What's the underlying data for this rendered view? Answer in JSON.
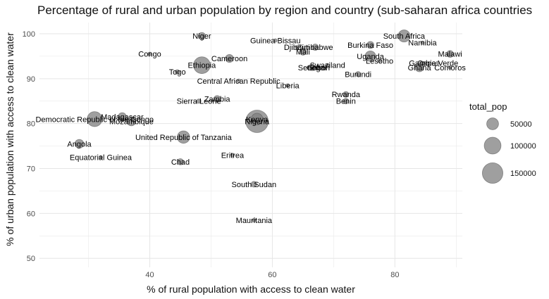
{
  "chart_data": {
    "type": "scatter",
    "title": "Percentage of rural and urban population by region and country (sub-saharan africa countries",
    "xlabel": "% of rural population with access to clean water",
    "ylabel": "% of urban population with access to clean water",
    "xlim": [
      22,
      91
    ],
    "ylim": [
      48,
      102.5
    ],
    "x_ticks": [
      40,
      60,
      80
    ],
    "y_ticks": [
      50,
      60,
      70,
      80,
      90,
      100
    ],
    "grid": true,
    "size_variable": "total_pop",
    "legend": {
      "title": "total_pop",
      "placement": "right",
      "entries": [
        {
          "label": "50000",
          "value": 50000
        },
        {
          "label": "100000",
          "value": 100000
        },
        {
          "label": "150000",
          "value": 150000
        }
      ]
    },
    "colors": {
      "point_fill": "#7f7f7f",
      "point_stroke": "#555555",
      "panel_grid": "#e6e6e6"
    },
    "points": [
      {
        "label": "Niger",
        "x": 48.5,
        "y": 99.5,
        "size": 18000
      },
      {
        "label": "South Africa",
        "x": 81.5,
        "y": 99.5,
        "size": 52000
      },
      {
        "label": "Guinea Bissau",
        "x": 60.5,
        "y": 98.5,
        "size": 1600
      },
      {
        "label": "Namibia",
        "x": 84.5,
        "y": 98,
        "size": 2300
      },
      {
        "label": "Djibouti",
        "x": 64,
        "y": 97,
        "size": 900
      },
      {
        "label": "Zimbabwe",
        "x": 67,
        "y": 97,
        "size": 15000
      },
      {
        "label": "Burkina Faso",
        "x": 76,
        "y": 97.5,
        "size": 18000
      },
      {
        "label": "Mali",
        "x": 65,
        "y": 96,
        "size": 17000
      },
      {
        "label": "Congo",
        "x": 40,
        "y": 95.5,
        "size": 5000
      },
      {
        "label": "Malawi",
        "x": 89,
        "y": 95.5,
        "size": 17000
      },
      {
        "label": "Uganda",
        "x": 76,
        "y": 95,
        "size": 40000
      },
      {
        "label": "Cameroon",
        "x": 53,
        "y": 94.5,
        "size": 23000
      },
      {
        "label": "Lesotho",
        "x": 77.5,
        "y": 94,
        "size": 2200
      },
      {
        "label": "Gambia",
        "x": 84.5,
        "y": 93.5,
        "size": 2000
      },
      {
        "label": "Cape Verde",
        "x": 87,
        "y": 93.5,
        "size": 500
      },
      {
        "label": "Ethiopia",
        "x": 48.5,
        "y": 93,
        "size": 100000
      },
      {
        "label": "Swaziland",
        "x": 69,
        "y": 93,
        "size": 1300
      },
      {
        "label": "Senegal",
        "x": 66.5,
        "y": 92.5,
        "size": 15000
      },
      {
        "label": "Ghana",
        "x": 84,
        "y": 92.5,
        "size": 27000
      },
      {
        "label": "Comoros",
        "x": 89,
        "y": 92.5,
        "size": 800
      },
      {
        "label": "Gabon",
        "x": 67.5,
        "y": 92.5,
        "size": 1900
      },
      {
        "label": "Togo",
        "x": 44.5,
        "y": 91.5,
        "size": 7500
      },
      {
        "label": "Burundi",
        "x": 74,
        "y": 91,
        "size": 10000
      },
      {
        "label": "Central African Republic",
        "x": 54.5,
        "y": 89.5,
        "size": 4700
      },
      {
        "label": "Liberia",
        "x": 62.5,
        "y": 88.5,
        "size": 4500
      },
      {
        "label": "Rwanda",
        "x": 72,
        "y": 86.5,
        "size": 12000
      },
      {
        "label": "Zambia",
        "x": 51,
        "y": 85.5,
        "size": 16000
      },
      {
        "label": "Benin",
        "x": 72,
        "y": 85,
        "size": 11000
      },
      {
        "label": "Sierra Leone",
        "x": 48,
        "y": 85,
        "size": 7000
      },
      {
        "label": "Democratic Republic of the Congo",
        "x": 31,
        "y": 81,
        "size": 80000
      },
      {
        "label": "Madagascar",
        "x": 35.5,
        "y": 81.5,
        "size": 25000
      },
      {
        "label": "Mozambique",
        "x": 37,
        "y": 80.5,
        "size": 28000
      },
      {
        "label": "Kenya",
        "x": 57.5,
        "y": 81,
        "size": 48000
      },
      {
        "label": "Nigeria",
        "x": 57.5,
        "y": 80.5,
        "size": 180000
      },
      {
        "label": "United Republic of Tanzania",
        "x": 45.5,
        "y": 77,
        "size": 55000
      },
      {
        "label": "Angola",
        "x": 28.5,
        "y": 75.5,
        "size": 28000
      },
      {
        "label": "Eritrea",
        "x": 53.5,
        "y": 73,
        "size": 5000
      },
      {
        "label": "Equatorial Guinea",
        "x": 32,
        "y": 72.5,
        "size": 1200
      },
      {
        "label": "Chad",
        "x": 45,
        "y": 71.5,
        "size": 14000
      },
      {
        "label": "South Sudan",
        "x": 57,
        "y": 66.5,
        "size": 12000
      },
      {
        "label": "Mauritania",
        "x": 57,
        "y": 58.5,
        "size": 4100
      }
    ]
  }
}
